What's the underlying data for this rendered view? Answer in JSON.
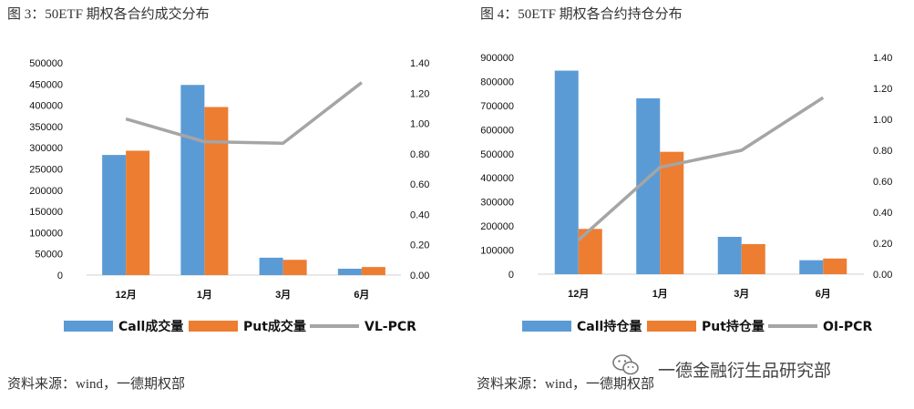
{
  "colors": {
    "call": "#5B9BD5",
    "put": "#ED7D31",
    "pcr": "#A5A5A5"
  },
  "page": {
    "watermark": "一德金融衍生品研究部"
  },
  "chart_data": [
    {
      "type": "bar",
      "title": "图 3：50ETF 期权各合约成交分布",
      "source": "资料来源：wind，一德期权部",
      "categories": [
        "12月",
        "1月",
        "3月",
        "6月"
      ],
      "series": [
        {
          "name": "Call成交量",
          "axis": "left",
          "values": [
            283000,
            448000,
            41000,
            15000
          ]
        },
        {
          "name": "Put成交量",
          "axis": "left",
          "values": [
            293000,
            396000,
            36000,
            19000
          ]
        },
        {
          "name": "VL-PCR",
          "axis": "right",
          "kind": "line",
          "values": [
            1.03,
            0.88,
            0.87,
            1.27
          ]
        }
      ],
      "ylim": [
        0,
        500000
      ],
      "y_ticks": [
        "0",
        "50000",
        "100000",
        "150000",
        "200000",
        "250000",
        "300000",
        "350000",
        "400000",
        "450000",
        "500000"
      ],
      "y2lim": [
        0,
        1.4
      ],
      "y2_ticks": [
        "0.00",
        "0.20",
        "0.40",
        "0.60",
        "0.80",
        "1.00",
        "1.20",
        "1.40"
      ],
      "legend_position": "bottom",
      "grid": false
    },
    {
      "type": "bar",
      "title": "图 4：50ETF 期权各合约持仓分布",
      "source": "资料来源：wind，一德期权部",
      "categories": [
        "12月",
        "1月",
        "3月",
        "6月"
      ],
      "series": [
        {
          "name": "Call持仓量",
          "axis": "left",
          "values": [
            845000,
            730000,
            155000,
            58000
          ]
        },
        {
          "name": "Put持仓量",
          "axis": "left",
          "values": [
            188000,
            508000,
            125000,
            65000
          ]
        },
        {
          "name": "OI-PCR",
          "axis": "right",
          "kind": "line",
          "values": [
            0.22,
            0.69,
            0.8,
            1.14
          ]
        }
      ],
      "ylim": [
        0,
        900000
      ],
      "y_ticks": [
        "0",
        "100000",
        "200000",
        "300000",
        "400000",
        "500000",
        "600000",
        "700000",
        "800000",
        "900000"
      ],
      "y2lim": [
        0,
        1.4
      ],
      "y2_ticks": [
        "0.00",
        "0.20",
        "0.40",
        "0.60",
        "0.80",
        "1.00",
        "1.20",
        "1.40"
      ],
      "legend_position": "bottom",
      "grid": false
    }
  ]
}
